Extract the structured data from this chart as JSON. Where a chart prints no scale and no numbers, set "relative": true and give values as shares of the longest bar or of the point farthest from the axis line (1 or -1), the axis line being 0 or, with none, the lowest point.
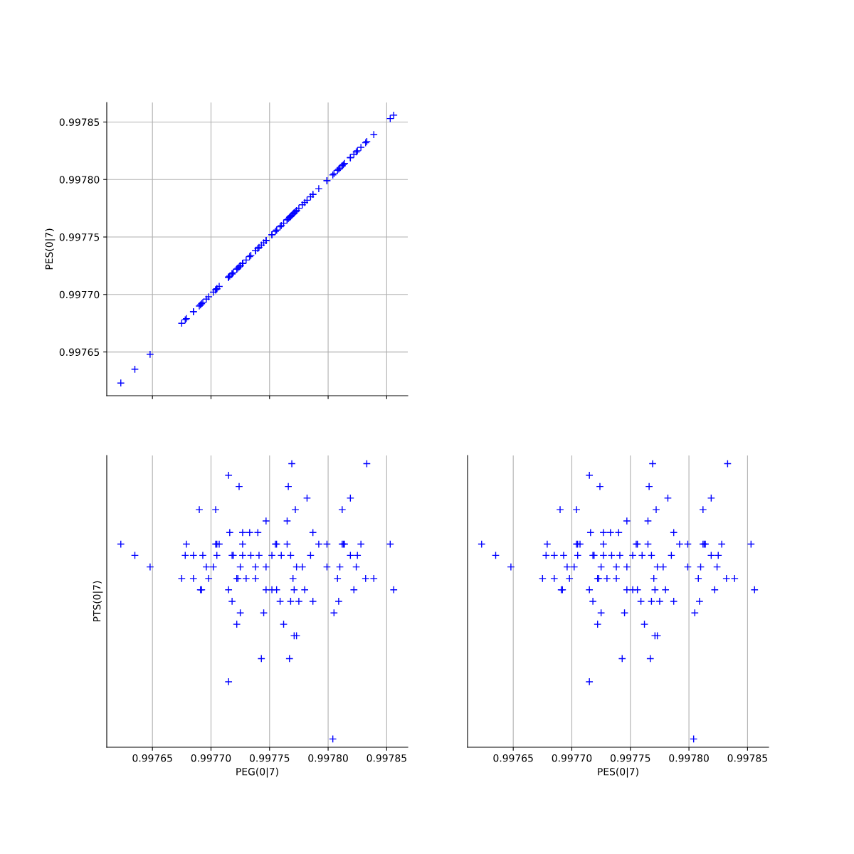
{
  "chart_data": [
    {
      "type": "scatter",
      "ylabel": "PES(0|7)",
      "color": "#0000ff",
      "marker": "cross",
      "grid": true,
      "tick_labels": "y",
      "xlim": [
        0.997611,
        0.997868
      ],
      "xticks": [
        {
          "value": 0.99765,
          "label": null
        },
        {
          "value": 0.9977,
          "label": null
        },
        {
          "value": 0.99775,
          "label": null
        },
        {
          "value": 0.9978,
          "label": null
        },
        {
          "value": 0.99785,
          "label": null
        }
      ],
      "ylim": [
        0.997612,
        0.997867
      ],
      "yticks": [
        0.99765,
        {
          "value": 0.9977,
          "label": "0.99770"
        },
        0.99775,
        {
          "value": 0.9978,
          "label": "0.99780"
        },
        0.99785
      ],
      "x": [
        0.997769,
        0.997833,
        0.997715,
        0.997724,
        0.997766,
        0.997782,
        0.997819,
        0.99769,
        0.997704,
        0.997772,
        0.997812,
        0.997747,
        0.997765,
        0.997716,
        0.997727,
        0.997733,
        0.99774,
        0.997787,
        0.997623,
        0.997679,
        0.997704,
        0.997705,
        0.997707,
        0.997727,
        0.997755,
        0.997756,
        0.997765,
        0.997792,
        0.997799,
        0.997812,
        0.997813,
        0.997814,
        0.997828,
        0.997853,
        0.997635,
        0.997678,
        0.997685,
        0.997693,
        0.997705,
        0.997718,
        0.997719,
        0.997727,
        0.997734,
        0.997741,
        0.997752,
        0.99776,
        0.997768,
        0.997785,
        0.997819,
        0.997825,
        0.997648,
        0.997696,
        0.997702,
        0.997725,
        0.997738,
        0.997747,
        0.997773,
        0.997778,
        0.997799,
        0.99781,
        0.997824,
        0.997675,
        0.997685,
        0.997698,
        0.997722,
        0.997723,
        0.99773,
        0.997738,
        0.99777,
        0.997808,
        0.997832,
        0.997839,
        0.997691,
        0.997692,
        0.997715,
        0.997747,
        0.997752,
        0.997756,
        0.997771,
        0.99778,
        0.997822,
        0.997856,
        0.997718,
        0.997759,
        0.997768,
        0.997775,
        0.997787,
        0.997809,
        0.997725,
        0.997745,
        0.997805,
        0.997722,
        0.997762,
        0.997771,
        0.997773,
        0.997743,
        0.997767,
        0.997715,
        0.997804
      ],
      "values": [
        0.997769,
        0.997833,
        0.997715,
        0.997724,
        0.997766,
        0.997782,
        0.997819,
        0.99769,
        0.997704,
        0.997772,
        0.997812,
        0.997747,
        0.997765,
        0.997716,
        0.997727,
        0.997733,
        0.99774,
        0.997787,
        0.997623,
        0.997679,
        0.997704,
        0.997705,
        0.997707,
        0.997727,
        0.997755,
        0.997756,
        0.997765,
        0.997792,
        0.997799,
        0.997812,
        0.997813,
        0.997814,
        0.997828,
        0.997853,
        0.997635,
        0.997678,
        0.997685,
        0.997693,
        0.997705,
        0.997718,
        0.997719,
        0.997727,
        0.997734,
        0.997741,
        0.997752,
        0.99776,
        0.997768,
        0.997785,
        0.997819,
        0.997825,
        0.997648,
        0.997696,
        0.997702,
        0.997725,
        0.997738,
        0.997747,
        0.997773,
        0.997778,
        0.997799,
        0.99781,
        0.997824,
        0.997675,
        0.997685,
        0.997698,
        0.997722,
        0.997723,
        0.99773,
        0.997738,
        0.99777,
        0.997808,
        0.997832,
        0.997839,
        0.997691,
        0.997692,
        0.997715,
        0.997747,
        0.997752,
        0.997756,
        0.997771,
        0.99778,
        0.997822,
        0.997856,
        0.997718,
        0.997759,
        0.997768,
        0.997775,
        0.997787,
        0.997809,
        0.997725,
        0.997745,
        0.997805,
        0.997722,
        0.997762,
        0.997771,
        0.997773,
        0.997743,
        0.997767,
        0.997715,
        0.997804
      ]
    },
    {
      "type": "scatter",
      "xlabel": "PEG(0|7)",
      "ylabel": "PTS(0|7)",
      "color": "#0000ff",
      "marker": "cross",
      "grid": "x",
      "tick_labels": "x",
      "relative": true,
      "xlim": [
        0.997611,
        0.997868
      ],
      "xticks": [
        0.99765,
        {
          "value": 0.9977,
          "label": "0.99770"
        },
        0.99775,
        {
          "value": 0.9978,
          "label": "0.99780"
        },
        0.99785
      ],
      "x": [
        0.997769,
        0.997833,
        0.997715,
        0.997724,
        0.997766,
        0.997782,
        0.997819,
        0.99769,
        0.997704,
        0.997772,
        0.997812,
        0.997747,
        0.997765,
        0.997716,
        0.997727,
        0.997733,
        0.99774,
        0.997787,
        0.997623,
        0.997679,
        0.997704,
        0.997705,
        0.997707,
        0.997727,
        0.997755,
        0.997756,
        0.997765,
        0.997792,
        0.997799,
        0.997812,
        0.997813,
        0.997814,
        0.997828,
        0.997853,
        0.997635,
        0.997678,
        0.997685,
        0.997693,
        0.997705,
        0.997718,
        0.997719,
        0.997727,
        0.997734,
        0.997741,
        0.997752,
        0.99776,
        0.997768,
        0.997785,
        0.997819,
        0.997825,
        0.997648,
        0.997696,
        0.997702,
        0.997725,
        0.997738,
        0.997747,
        0.997773,
        0.997778,
        0.997799,
        0.99781,
        0.997824,
        0.997675,
        0.997685,
        0.997698,
        0.997722,
        0.997723,
        0.99773,
        0.997738,
        0.99777,
        0.997808,
        0.997832,
        0.997839,
        0.997691,
        0.997692,
        0.997715,
        0.997747,
        0.997752,
        0.997756,
        0.997771,
        0.99778,
        0.997822,
        0.997856,
        0.997718,
        0.997759,
        0.997768,
        0.997775,
        0.997787,
        0.997809,
        0.997725,
        0.997745,
        0.997805,
        0.997722,
        0.997762,
        0.997771,
        0.997773,
        0.997743,
        0.997767,
        0.997715,
        0.997804
      ],
      "values": [
        1,
        1,
        0.958,
        0.917,
        0.917,
        0.875,
        0.875,
        0.833,
        0.833,
        0.833,
        0.833,
        0.792,
        0.792,
        0.75,
        0.75,
        0.75,
        0.75,
        0.75,
        0.708,
        0.708,
        0.708,
        0.708,
        0.708,
        0.708,
        0.708,
        0.708,
        0.708,
        0.708,
        0.708,
        0.708,
        0.708,
        0.708,
        0.708,
        0.708,
        0.667,
        0.667,
        0.667,
        0.667,
        0.667,
        0.667,
        0.667,
        0.667,
        0.667,
        0.667,
        0.667,
        0.667,
        0.667,
        0.667,
        0.667,
        0.667,
        0.625,
        0.625,
        0.625,
        0.625,
        0.625,
        0.625,
        0.625,
        0.625,
        0.625,
        0.625,
        0.625,
        0.583,
        0.583,
        0.583,
        0.583,
        0.583,
        0.583,
        0.583,
        0.583,
        0.583,
        0.583,
        0.583,
        0.542,
        0.542,
        0.542,
        0.542,
        0.542,
        0.542,
        0.542,
        0.542,
        0.542,
        0.542,
        0.5,
        0.5,
        0.5,
        0.5,
        0.5,
        0.5,
        0.458,
        0.458,
        0.458,
        0.417,
        0.417,
        0.375,
        0.375,
        0.292,
        0.292,
        0.208,
        0
      ]
    },
    {
      "type": "scatter",
      "xlabel": "PES(0|7)",
      "color": "#0000ff",
      "marker": "cross",
      "grid": "x",
      "tick_labels": "x",
      "relative": true,
      "xlim": [
        0.997611,
        0.997868
      ],
      "xticks": [
        0.99765,
        {
          "value": 0.9977,
          "label": "0.99770"
        },
        0.99775,
        {
          "value": 0.9978,
          "label": "0.99780"
        },
        0.99785
      ],
      "x": [
        0.997769,
        0.997833,
        0.997715,
        0.997724,
        0.997766,
        0.997782,
        0.997819,
        0.99769,
        0.997704,
        0.997772,
        0.997812,
        0.997747,
        0.997765,
        0.997716,
        0.997727,
        0.997733,
        0.99774,
        0.997787,
        0.997623,
        0.997679,
        0.997704,
        0.997705,
        0.997707,
        0.997727,
        0.997755,
        0.997756,
        0.997765,
        0.997792,
        0.997799,
        0.997812,
        0.997813,
        0.997814,
        0.997828,
        0.997853,
        0.997635,
        0.997678,
        0.997685,
        0.997693,
        0.997705,
        0.997718,
        0.997719,
        0.997727,
        0.997734,
        0.997741,
        0.997752,
        0.99776,
        0.997768,
        0.997785,
        0.997819,
        0.997825,
        0.997648,
        0.997696,
        0.997702,
        0.997725,
        0.997738,
        0.997747,
        0.997773,
        0.997778,
        0.997799,
        0.99781,
        0.997824,
        0.997675,
        0.997685,
        0.997698,
        0.997722,
        0.997723,
        0.99773,
        0.997738,
        0.99777,
        0.997808,
        0.997832,
        0.997839,
        0.997691,
        0.997692,
        0.997715,
        0.997747,
        0.997752,
        0.997756,
        0.997771,
        0.99778,
        0.997822,
        0.997856,
        0.997718,
        0.997759,
        0.997768,
        0.997775,
        0.997787,
        0.997809,
        0.997725,
        0.997745,
        0.997805,
        0.997722,
        0.997762,
        0.997771,
        0.997773,
        0.997743,
        0.997767,
        0.997715,
        0.997804
      ],
      "values": [
        1,
        1,
        0.958,
        0.917,
        0.917,
        0.875,
        0.875,
        0.833,
        0.833,
        0.833,
        0.833,
        0.792,
        0.792,
        0.75,
        0.75,
        0.75,
        0.75,
        0.75,
        0.708,
        0.708,
        0.708,
        0.708,
        0.708,
        0.708,
        0.708,
        0.708,
        0.708,
        0.708,
        0.708,
        0.708,
        0.708,
        0.708,
        0.708,
        0.708,
        0.667,
        0.667,
        0.667,
        0.667,
        0.667,
        0.667,
        0.667,
        0.667,
        0.667,
        0.667,
        0.667,
        0.667,
        0.667,
        0.667,
        0.667,
        0.667,
        0.625,
        0.625,
        0.625,
        0.625,
        0.625,
        0.625,
        0.625,
        0.625,
        0.625,
        0.625,
        0.625,
        0.583,
        0.583,
        0.583,
        0.583,
        0.583,
        0.583,
        0.583,
        0.583,
        0.583,
        0.583,
        0.583,
        0.542,
        0.542,
        0.542,
        0.542,
        0.542,
        0.542,
        0.542,
        0.542,
        0.542,
        0.542,
        0.5,
        0.5,
        0.5,
        0.5,
        0.5,
        0.5,
        0.458,
        0.458,
        0.458,
        0.417,
        0.417,
        0.375,
        0.375,
        0.292,
        0.292,
        0.208,
        0
      ]
    }
  ]
}
